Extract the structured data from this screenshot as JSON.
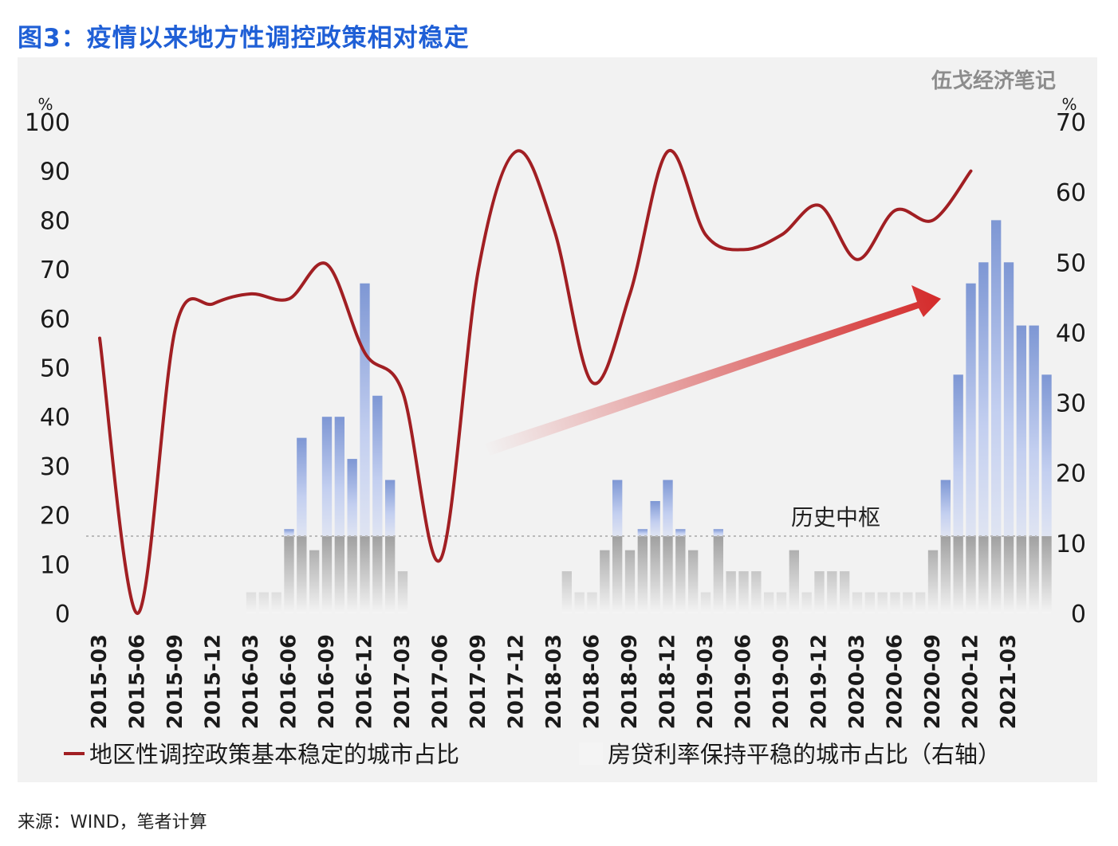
{
  "figure_title": "图3：疫情以来地方性调控政策相对稳定",
  "source": "来源：WIND，笔者计算",
  "chart_data": {
    "type": "bar+line",
    "watermark": "伍戈经济笔记",
    "left_axis": {
      "unit": "%",
      "ylim": [
        0,
        100
      ],
      "ticks": [
        0,
        10,
        20,
        30,
        40,
        50,
        60,
        70,
        80,
        90,
        100
      ]
    },
    "right_axis": {
      "unit": "%",
      "ylim": [
        0,
        70
      ],
      "ticks": [
        0,
        10,
        20,
        30,
        40,
        50,
        60,
        70
      ]
    },
    "x_tick_labels": [
      "2015-03",
      "2015-06",
      "2015-09",
      "2015-12",
      "2016-03",
      "2016-06",
      "2016-09",
      "2016-12",
      "2017-03",
      "2017-06",
      "2017-09",
      "2017-12",
      "2018-03",
      "2018-06",
      "2018-09",
      "2018-12",
      "2019-03",
      "2019-06",
      "2019-09",
      "2019-12",
      "2020-03",
      "2020-06",
      "2020-09",
      "2020-12",
      "2021-03"
    ],
    "bar_start": "2016-03",
    "annotation": "历史中枢",
    "reference_line_right": 11,
    "series": [
      {
        "name": "地区性调控政策基本稳定的城市占比",
        "axis": "left",
        "color": "#a11f23",
        "x": [
          "2015-03",
          "2015-06",
          "2015-09",
          "2015-12",
          "2016-03",
          "2016-06",
          "2016-09",
          "2016-12",
          "2017-03",
          "2017-06",
          "2017-09",
          "2017-12",
          "2018-03",
          "2018-06",
          "2018-09",
          "2018-12",
          "2019-03",
          "2019-06",
          "2019-09",
          "2019-12",
          "2020-03",
          "2020-06",
          "2020-09",
          "2020-12"
        ],
        "values": [
          56,
          0,
          58,
          63,
          65,
          64,
          71,
          53,
          45,
          11,
          70,
          94,
          78,
          47,
          65,
          94,
          77,
          74,
          77,
          83,
          72,
          82,
          80,
          90
        ]
      },
      {
        "name": "房贷利率保持平稳的城市占比（右轴）",
        "axis": "right",
        "color": "#9fb4dd",
        "values": [
          3,
          3,
          3,
          12,
          25,
          9,
          28,
          28,
          22,
          47,
          31,
          19,
          6,
          0,
          0,
          0,
          0,
          0,
          0,
          0,
          0,
          0,
          0,
          0,
          0,
          6,
          3,
          3,
          9,
          19,
          9,
          12,
          16,
          19,
          12,
          9,
          3,
          12,
          6,
          6,
          6,
          3,
          3,
          9,
          3,
          6,
          6,
          6,
          3,
          3,
          3,
          3,
          3,
          3,
          9,
          19,
          34,
          47,
          50,
          56,
          50,
          41,
          41,
          34
        ]
      }
    ]
  }
}
